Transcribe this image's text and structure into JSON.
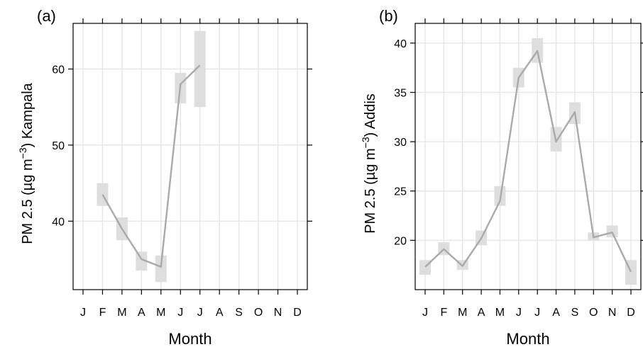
{
  "chart_data": [
    {
      "type": "line",
      "panel_label": "(a)",
      "xlabel": "Month",
      "ylabel": "PM 2.5 (µg m⁻³) Kampala",
      "ylabel_parts": {
        "pre": "PM 2.5 (µg m",
        "sup": "−3",
        "post": ") Kampala"
      },
      "categories": [
        "J",
        "F",
        "M",
        "A",
        "M",
        "J",
        "J",
        "A",
        "S",
        "O",
        "N",
        "D"
      ],
      "ylim": [
        31,
        66
      ],
      "yticks": [
        40,
        50,
        60
      ],
      "grid": true,
      "series": [
        {
          "values": [
            null,
            43.5,
            39.0,
            35.0,
            34.0,
            58.0,
            60.5,
            null,
            null,
            null,
            null,
            null
          ],
          "ranges": [
            null,
            [
              42.0,
              45.0
            ],
            [
              37.5,
              40.5
            ],
            [
              33.5,
              36.0
            ],
            [
              32.0,
              35.5
            ],
            [
              55.5,
              59.5
            ],
            [
              55.0,
              65.0
            ],
            null,
            null,
            null,
            null,
            null
          ]
        }
      ],
      "colors": {
        "line": "#aaaaaa",
        "band": "#dedede",
        "grid": "#e6e6e6"
      }
    },
    {
      "type": "line",
      "panel_label": "(b)",
      "xlabel": "Month",
      "ylabel": "PM 2.5 (µg m⁻³) Addis",
      "ylabel_parts": {
        "pre": "PM 2.5 (µg m",
        "sup": "−3",
        "post": ") Addis"
      },
      "categories": [
        "J",
        "F",
        "M",
        "A",
        "M",
        "J",
        "J",
        "A",
        "S",
        "O",
        "N",
        "D"
      ],
      "ylim": [
        15.0,
        42.0
      ],
      "yticks": [
        20,
        25,
        30,
        35,
        40
      ],
      "grid": true,
      "series": [
        {
          "values": [
            17.3,
            19.1,
            17.4,
            20.2,
            24.0,
            36.5,
            39.2,
            30.0,
            33.0,
            20.3,
            20.8,
            16.8
          ],
          "ranges": [
            [
              16.5,
              18.0
            ],
            [
              18.5,
              19.8
            ],
            [
              17.0,
              18.0
            ],
            [
              19.5,
              21.0
            ],
            [
              23.5,
              25.5
            ],
            [
              35.5,
              37.5
            ],
            [
              38.0,
              40.5
            ],
            [
              29.0,
              31.5
            ],
            [
              31.8,
              34.0
            ],
            [
              20.0,
              20.8
            ],
            [
              20.3,
              21.5
            ],
            [
              15.5,
              18.0
            ]
          ]
        }
      ],
      "colors": {
        "line": "#aaaaaa",
        "band": "#dedede",
        "grid": "#e6e6e6"
      }
    }
  ]
}
